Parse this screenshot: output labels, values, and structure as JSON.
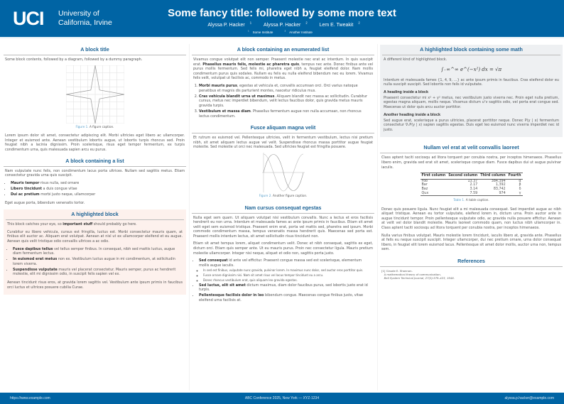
{
  "header": {
    "logo_mark": "UCI",
    "logo_line1": "University of",
    "logo_line2": "California, Irvine",
    "title": "Some fancy title: followed by some more text",
    "authors": [
      {
        "name": "Alyssa P. Hacker",
        "sup": "1"
      },
      {
        "name": "Alyssa P. Hacker",
        "sup": "2"
      },
      {
        "name": "Lem E. Tweakit",
        "sup": "2"
      }
    ],
    "institutions": [
      {
        "sup": "1",
        "name": "Some Institute"
      },
      {
        "sup": "2",
        "name": "Another Institute"
      }
    ],
    "color": "#0064a4"
  },
  "col1": {
    "b1_title": "A block title",
    "b1_intro": "Some block contents, followed by a diagram, followed by a dummy paragraph.",
    "fig1_label": "Figure 1.",
    "fig1_caption": "A figure caption.",
    "b1_para": "Lorem ipsum dolor sit amet, consectetur adipiscing elit. Morbi ultricies eget libero ac ullamcorper. Integer et euismod ante. Aenean vestibulum lobortis augue, ut lobortis turpis rhoncus sed. Proin feugiat nibh a lacinia dignissim. Proin scelerisque, risus eget tempor fermentum, ex turpis condimentum urna, quis malesuada sapien arcu eu purus.",
    "b2_title": "A block containing a list",
    "b2_intro": "Nam vulputate nunc felis, non condimentum lacus porta ultrices. Nullam sed sagittis metus. Etiam consectetur gravida urna quis suscipit.",
    "b2_items": [
      {
        "bold": "Mauris tempor",
        "text": " risus nulla, sed ornare"
      },
      {
        "bold": "Libero tincidunt",
        "text": " a duis congue vitae"
      },
      {
        "bold": "Dui ac pretium",
        "text": " morbi justo neque, ullamcorper"
      }
    ],
    "b2_outro": "Eget augue porta, bibendum venenatis tortor.",
    "b3_title": "A highlighted block",
    "b3_p1a": "This block catches your eye, so ",
    "b3_p1b": "important stuff",
    "b3_p1c": " should probably go here.",
    "b3_p2": "Curabitur eu libero vehicula, cursus est fringilla, luctus est. Morbi consectetur mauris quam, at finibus elit auctor ac. Aliquam erat volutpat. Aenean at nisl ut ex ullamcorper eleifend et eu augue. Aenean quis velit tristique odio convallis ultrices a ac odio.",
    "b3_items": [
      {
        "bold": "Fusce dapibus tellus",
        "text": " vel tellus semper finibus. In consequat, nibh sed mattis luctus, augue diam fermentum lectus."
      },
      {
        "bold": "In euismod erat metus",
        "text": " non ex. Vestibulum luctus augue in mi condimentum, at sollicitudin lorem viverra."
      },
      {
        "bold": "Suspendisse vulputate",
        "text": " mauris vel placerat consectetur. Mauris semper, purus ac hendrerit molestie, elit mi dignissim odio, in suscipit felis sapien vel ex."
      }
    ],
    "b3_p3": "Aenean tincidunt risus eros, at gravida lorem sagittis vel. Vestibulum ante ipsum primis in faucibus orci luctus et ultrices posuere cubilia Curae.",
    "highlight_bg": "#fdf1ed"
  },
  "col2": {
    "b1_title": "A block containing an enumerated list",
    "b1_p1a": "Vivamus congue volutpat elit non semper. Praesent molestie nec erat ac interdum. In quis suscipit erat. ",
    "b1_p1b": "Phasellus mauris felis, molestie ac pharetra quis",
    "b1_p1c": ", tempus nec ante. Donec finibus ante vel purus mollis fermentum. Sed felis mi, pharetra eget nibh a, feugiat eleifend dolor. Nam mollis condimentum purus quis sodales. Nullam eu felis eu nulla eleifend bibendum nec eu lorem. Vivamus felis velit, volutpat ut facilisis ac, commodo in metus.",
    "b1_items": [
      {
        "bold": "Morbi mauris purus",
        "text": ", egestas at vehicula et, convallis accumsan orci. Orci varius natoque penatibus et magnis dis parturient montes, nascetur ridiculus mus."
      },
      {
        "bold": "Cras vehicula blandit urna ut maximus",
        "text": ". Aliquam blandit nec massa ac sollicitudin. Curabitur cursus, metus nec imperdiet bibendum, velit lectus faucibus dolor, quis gravida metus mauris gravida turpis."
      },
      {
        "bold": "Vestibulum et massa diam",
        "text": ". Phasellus fermentum augue non nulla accumsan, non rhoncus lectus condimentum."
      }
    ],
    "b2_title": "Fusce aliquam magna velit",
    "b2_para": "Et rutrum ex euismod vel. Pellentesque ultricies, velit in fermentum vestibulum, lectus nisi pretium nibh, sit amet aliquam lectus augue vel velit. Suspendisse rhoncus massa porttitor augue feugiat molestie. Sed molestie ut orci nec malesuada. Sed ultricies feugiat est fringilla posuere.",
    "fig2_label": "Figure 2.",
    "fig2_caption": "Another figure caption.",
    "b3_title": "Nam cursus consequat egestas",
    "b3_p1": "Nulla eget sem quam. Ut aliquam volutpat nisi vestibulum convallis. Nunc a lectus et eros facilisis hendrerit eu non urna. Interdum et malesuada fames ac ante ipsum primis in faucibus. Etiam sit amet velit eget sem euismod tristique. Praesent enim erat, porta vel mattis sed, pharetra sed ipsum. Morbi commodo condimentum massa, tempus venenatis massa hendrerit quis. Maecenas sed porta est. Praesent mollis interdum lectus, sit amet sollicitudin risus tincidunt non.",
    "b3_p2": "Etiam sit amet tempus lorem, aliquet condimentum velit. Donec et nibh consequat, sagittis ex eget, dictum orci. Etiam quis semper ante. Ut eu mauris purus. Proin nec consectetur ligula. Mauris pretium molestie ullamcorper. Integer nisi neque, aliquet et odio non, sagittis porta justo.",
    "b3_items": [
      {
        "bold": "Sed consequat",
        "text": " id ante vel efficitur. Praesent congue massa sed est scelerisque, elementum mollis augue iaculis.",
        "sub": [
          "In sed est finibus, vulputate nunc gravida, pulvinar lorem. In maximus nunc dolor, sed auctor eros porttitor quis.",
          "Fusce ornare dignissim nisi. Nam sit amet risus vel lacus tempor tincidunt eu a arcu.",
          "Donec rhoncus vestibulum erat, quis aliquam leo gravida egestas."
        ]
      },
      {
        "bold": "Sed luctus, elit sit amet",
        "text": " dictum maximus, diam dolor faucibus purus, sed lobortis justo erat id turpis."
      },
      {
        "bold": "Pellentesque facilisis dolor in leo",
        "text": " bibendum congue. Maecenas congue finibus justo, vitae eleifend urna facilisis at."
      }
    ]
  },
  "col3": {
    "b1_title": "A highlighted block containing some math",
    "b1_intro": "A different kind of highlighted block.",
    "math": "∫₋∞^∞ e^(−x²) dx = √π",
    "b1_p2": "Interdum et malesuada fames {1, 4, 9, …} ac ante ipsum primis in faucibus. Cras eleifend dolor eu nulla suscipit suscipit. Sed lobortis non felis id vulputate.",
    "h1": "A heading inside a block",
    "h1_p": "Praesent consectetur mi x² + y² metus, nec vestibulum justo viverra nec. Proin eget nulla pretium, egestas magna aliquam, mollis neque. Vivamus dictum uᵀv sagittis odio, vel porta erat congue sed. Maecenas ut dolor quis arcu auctor porttitor.",
    "h2": "Another heading inside a block",
    "h2_p": "Sed augue erat, scelerisque a purus ultricies, placerat porttitor neque. Donec P(y | x) fermentum consectetur ∇ₓP(y | x) sapien sagittis egestas. Duis eget leo euismod nunc viverra imperdiet nec id justo.",
    "math_bg": "#eef0f2",
    "b2_title": "Nullam vel erat at velit convallis laoreet",
    "b2_p1": "Class aptent taciti sociosqu ad litora torquent per conubia nostra, per inceptos himenaeos. Phasellus libero enim, gravida sed erat sit amet, scelerisque congue diam. Fusce dapibus dui ut augue pulvinar iaculis.",
    "table": {
      "headers": [
        "First column",
        "Second column",
        "Third column",
        "Fourth"
      ],
      "rows": [
        [
          "Foo",
          "13.37",
          "384,394",
          "α"
        ],
        [
          "Bar",
          "2.17",
          "1,392",
          "β"
        ],
        [
          "Baz",
          "3.14",
          "83,742",
          "δ"
        ],
        [
          "Qux",
          "7.59",
          "974",
          "γ"
        ]
      ]
    },
    "table_label": "Table 1.",
    "table_caption": "A table caption.",
    "b2_p2": "Donec quis posuere ligula. Nunc feugiat elit a mi malesuada consequat. Sed imperdiet augue ac nibh aliquet tristique. Aenean eu tortor vulputate, eleifend lorem in, dictum urna. Proin auctor ante in augue tincidunt tempor. Proin pellentesque vulputate odio, ac gravida nulla posuere efficitur. Aenean at velit vel dolor blandit molestie. Mauris laoreet commodo quam, non luctus nibh ullamcorper in. Class aptent taciti sociosqu ad litora torquent per conubia nostra, per inceptos himenaeos.",
    "b2_p3": "Nulla varius finibus volutpat. Mauris molestie lorem tincidunt, iaculis libero at, gravida ante. Phasellus at felis eu neque suscipit suscipit. Integer ullamcorper, dui nec pretium ornare, urna dolor consequat libero, in feugiat elit lorem euismod lacus. Pellentesque sit amet dolor mollis, auctor urna non, tempus sem.",
    "refs_title": "References",
    "ref1_num": "[1]",
    "ref1_l1": "Claude E. Shannon.",
    "ref1_l2": "A mathematical theory of communication.",
    "ref1_l3": "Bell System Technical Journal, 27(3):379–423, 1948."
  },
  "footer": {
    "left": "https://www.example.com",
    "center": "ABC Conference 2025, New York — XYZ-1234",
    "right": "alyssa.p.hacker@example.com"
  }
}
